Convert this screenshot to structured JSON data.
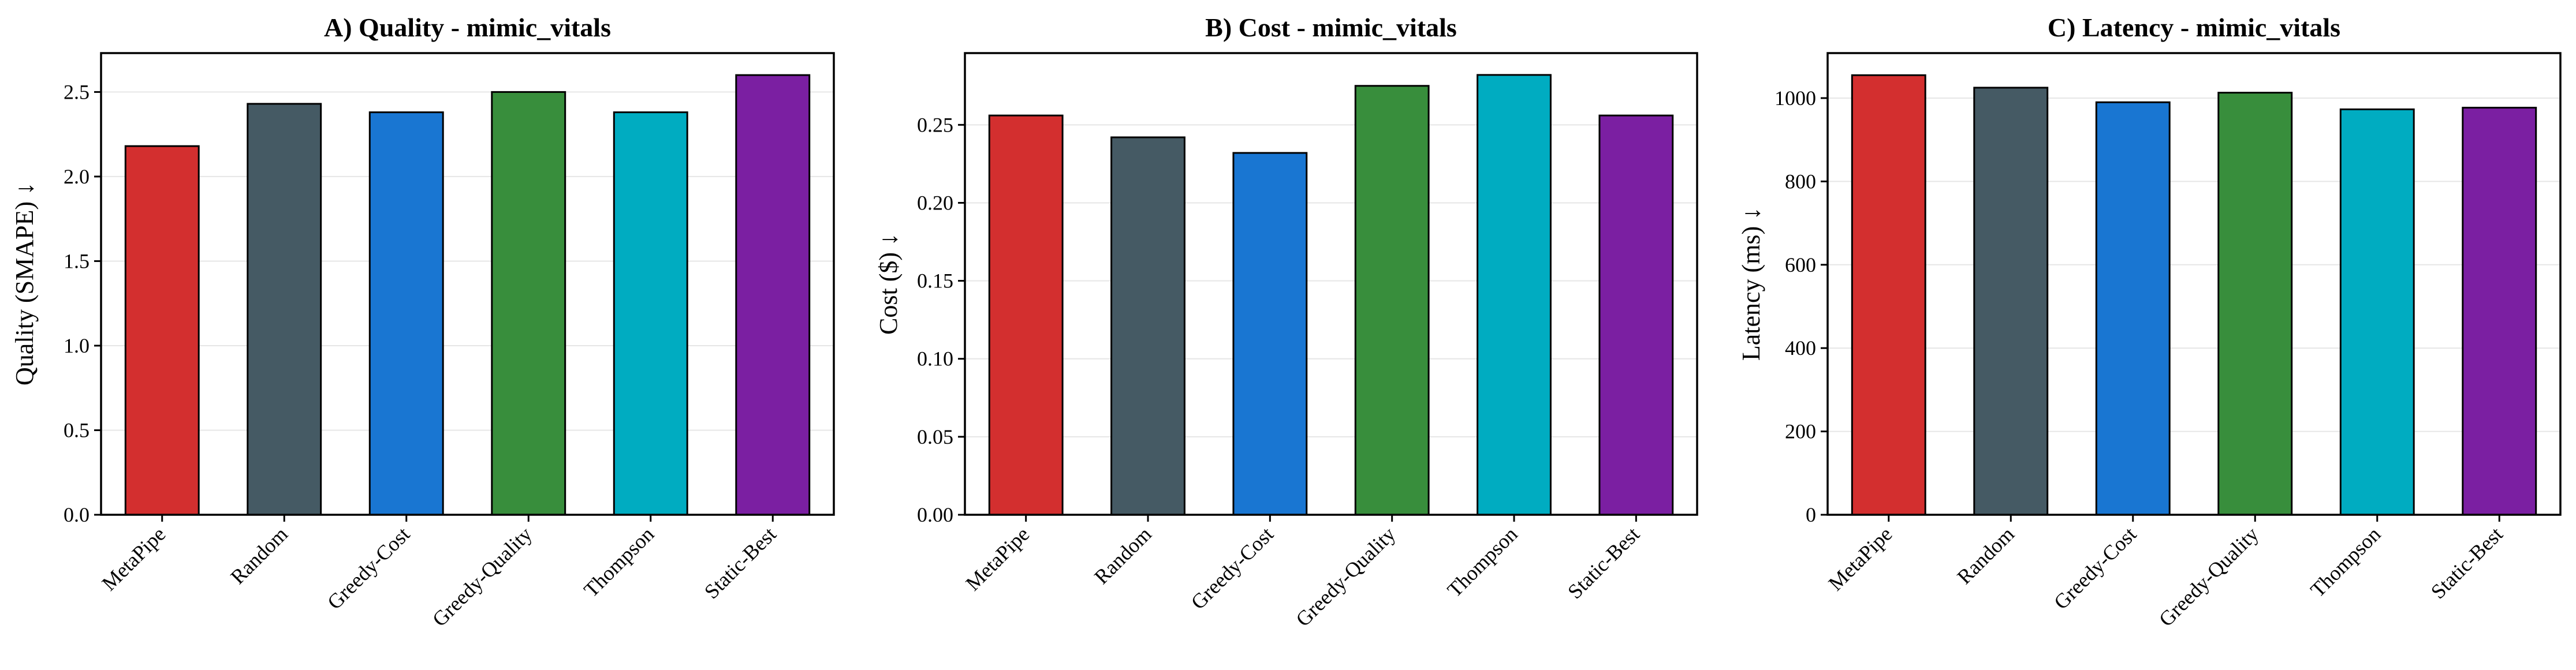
{
  "chart_data": [
    {
      "type": "bar",
      "title": "A) Quality - mimic_vitals",
      "ylabel": "Quality (SMAPE) ↓",
      "xlabel": "",
      "categories": [
        "MetaPipe",
        "Random",
        "Greedy-Cost",
        "Greedy-Quality",
        "Thompson",
        "Static-Best"
      ],
      "values": [
        2.18,
        2.43,
        2.38,
        2.5,
        2.38,
        2.6
      ],
      "ylim": [
        0,
        2.73
      ],
      "yticks": [
        0.0,
        0.5,
        1.0,
        1.5,
        2.0,
        2.5
      ],
      "ytick_labels": [
        "0.0",
        "0.5",
        "1.0",
        "1.5",
        "2.0",
        "2.5"
      ],
      "grid": true
    },
    {
      "type": "bar",
      "title": "B) Cost - mimic_vitals",
      "ylabel": "Cost ($) ↓",
      "xlabel": "",
      "categories": [
        "MetaPipe",
        "Random",
        "Greedy-Cost",
        "Greedy-Quality",
        "Thompson",
        "Static-Best"
      ],
      "values": [
        0.256,
        0.242,
        0.232,
        0.275,
        0.282,
        0.256
      ],
      "ylim": [
        0,
        0.296
      ],
      "yticks": [
        0.0,
        0.05,
        0.1,
        0.15,
        0.2,
        0.25
      ],
      "ytick_labels": [
        "0.00",
        "0.05",
        "0.10",
        "0.15",
        "0.20",
        "0.25"
      ],
      "grid": true
    },
    {
      "type": "bar",
      "title": "C) Latency - mimic_vitals",
      "ylabel": "Latency (ms) ↓",
      "xlabel": "",
      "categories": [
        "MetaPipe",
        "Random",
        "Greedy-Cost",
        "Greedy-Quality",
        "Thompson",
        "Static-Best"
      ],
      "values": [
        1055,
        1025,
        990,
        1013,
        973,
        977
      ],
      "ylim": [
        0,
        1108
      ],
      "yticks": [
        0,
        200,
        400,
        600,
        800,
        1000
      ],
      "ytick_labels": [
        "0",
        "200",
        "400",
        "600",
        "800",
        "1000"
      ],
      "grid": true
    }
  ],
  "colors": [
    "#d32f2f",
    "#455a64",
    "#1976d2",
    "#388e3c",
    "#00acc1",
    "#7b1fa2"
  ]
}
